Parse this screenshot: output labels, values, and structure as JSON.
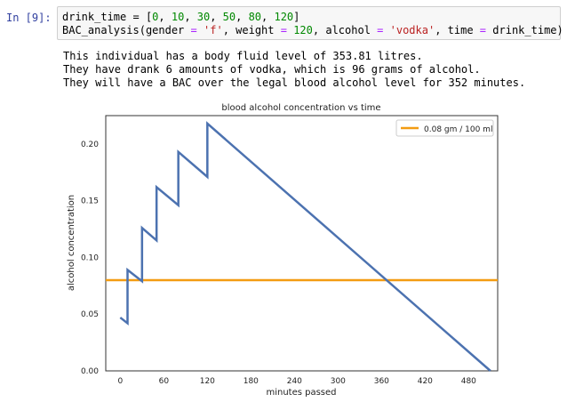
{
  "cell": {
    "prompt": "In [9]:",
    "code": {
      "line1": {
        "lhs": "drink_time",
        "op": " = ",
        "values": [
          "0",
          "10",
          "30",
          "50",
          "80",
          "120"
        ]
      },
      "line2": {
        "fn": "BAC_analysis",
        "gender_key": "gender",
        "gender_val": "'f'",
        "weight_key": "weight",
        "weight_val": "120",
        "alcohol_key": "alcohol",
        "alcohol_val": "'vodka'",
        "time_key": "time",
        "time_val": "drink_time"
      }
    }
  },
  "output": {
    "lines": [
      "This individual has a body fluid level of 353.81 litres.",
      "They have drank 6 amounts of vodka, which is 96 grams of alcohol.",
      "They will have a BAC over the legal blood alcohol level for 352 minutes."
    ]
  },
  "colors": {
    "series": "#4c72b0",
    "limit": "#f39c12",
    "prompt": "#303f9f"
  },
  "chart_data": {
    "type": "line",
    "title": "blood alcohol concentration vs time",
    "xlabel": "minutes passed",
    "ylabel": "alcohol concentration",
    "xlim": [
      -20,
      520
    ],
    "ylim": [
      0,
      0.225
    ],
    "xticks": [
      0,
      60,
      120,
      180,
      240,
      300,
      360,
      420,
      480
    ],
    "yticks": [
      0.0,
      0.05,
      0.1,
      0.15,
      0.2
    ],
    "ytick_labels": [
      "0.00",
      "0.05",
      "0.10",
      "0.15",
      "0.20"
    ],
    "grid": false,
    "legend_position": "top-right",
    "series": [
      {
        "x": [
          0,
          10,
          10,
          30,
          30,
          50,
          50,
          80,
          80,
          120,
          120,
          510
        ],
        "y": [
          0.047,
          0.042,
          0.089,
          0.079,
          0.126,
          0.115,
          0.162,
          0.146,
          0.193,
          0.171,
          0.218,
          0.0
        ]
      },
      {
        "name": "0.08 gm / 100 ml",
        "x": [
          -20,
          520
        ],
        "y": [
          0.08,
          0.08
        ]
      }
    ]
  }
}
